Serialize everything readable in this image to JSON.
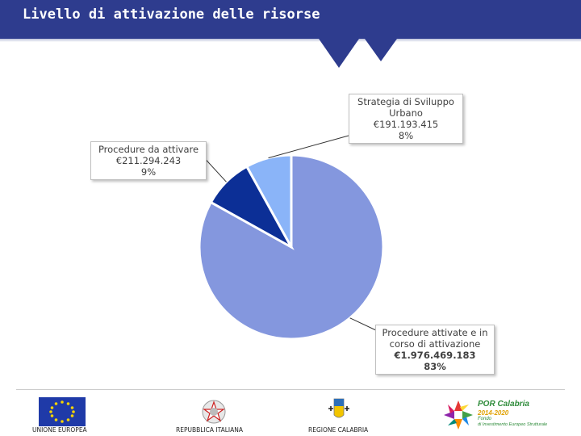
{
  "header": {
    "title": "Livello di attivazione delle risorse"
  },
  "colors": {
    "header": "#2e3c8e",
    "slice_main": "#8497de",
    "slice_dark": "#0c2f96",
    "slice_light": "#8ab4f8"
  },
  "chart_data": {
    "type": "pie",
    "categories": [
      "Procedure attivate e in corso di attivazione",
      "Procedure da attivare",
      "Strategia di Sviluppo Urbano"
    ],
    "values": [
      1976469183,
      211294243,
      191193415
    ],
    "percent": [
      83,
      9,
      8
    ],
    "labels": [
      {
        "lines": [
          "Procedure attivate e in",
          "corso di attivazione",
          "€1.976.469.183",
          "83%"
        ]
      },
      {
        "lines": [
          "Procedure da attivare",
          "€211.294.243",
          "9%"
        ]
      },
      {
        "lines": [
          "Strategia di Sviluppo",
          "Urbano",
          "€191.193.415",
          "8%"
        ]
      }
    ]
  },
  "footer": {
    "logos": [
      {
        "icon": "eu-flag-icon",
        "label": "UNIONE EUROPEA"
      },
      {
        "icon": "italian-emblem-icon",
        "label": "REPUBBLICA ITALIANA"
      },
      {
        "icon": "regione-calabria-icon",
        "label": "REGIONE CALABRIA"
      },
      {
        "icon": "por-calabria-icon",
        "label": ""
      }
    ],
    "por": {
      "title": "POR Calabria",
      "years": "2014-2020",
      "sub1": "Fondo",
      "sub2": "di Investimento Europeo Strutturale"
    }
  }
}
